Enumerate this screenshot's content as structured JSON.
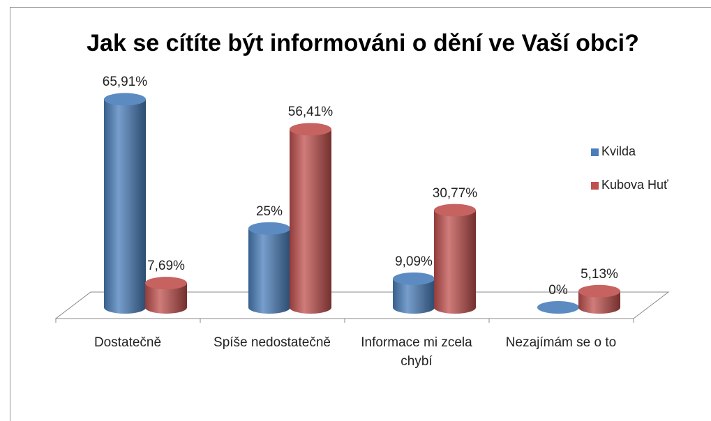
{
  "chart_data": {
    "type": "bar3d",
    "title": "Jak se cítíte být informováni o dění ve Vaší obci?",
    "categories": [
      "Dostatečně",
      "Spíše nedostatečně",
      "Informace mi zcela chybí",
      "Nezajímám se o to"
    ],
    "series": [
      {
        "name": "Kvilda",
        "color": "#4a7ebb",
        "values": [
          65.91,
          25,
          9.09,
          0
        ],
        "value_labels": [
          "65,91%",
          "25%",
          "9,09%",
          "0%"
        ]
      },
      {
        "name": "Kubova Huť",
        "color": "#c0504d",
        "values": [
          7.69,
          56.41,
          30.77,
          5.13
        ],
        "value_labels": [
          "7,69%",
          "56,41%",
          "30,77%",
          "5,13%"
        ]
      }
    ],
    "legend": "right"
  }
}
